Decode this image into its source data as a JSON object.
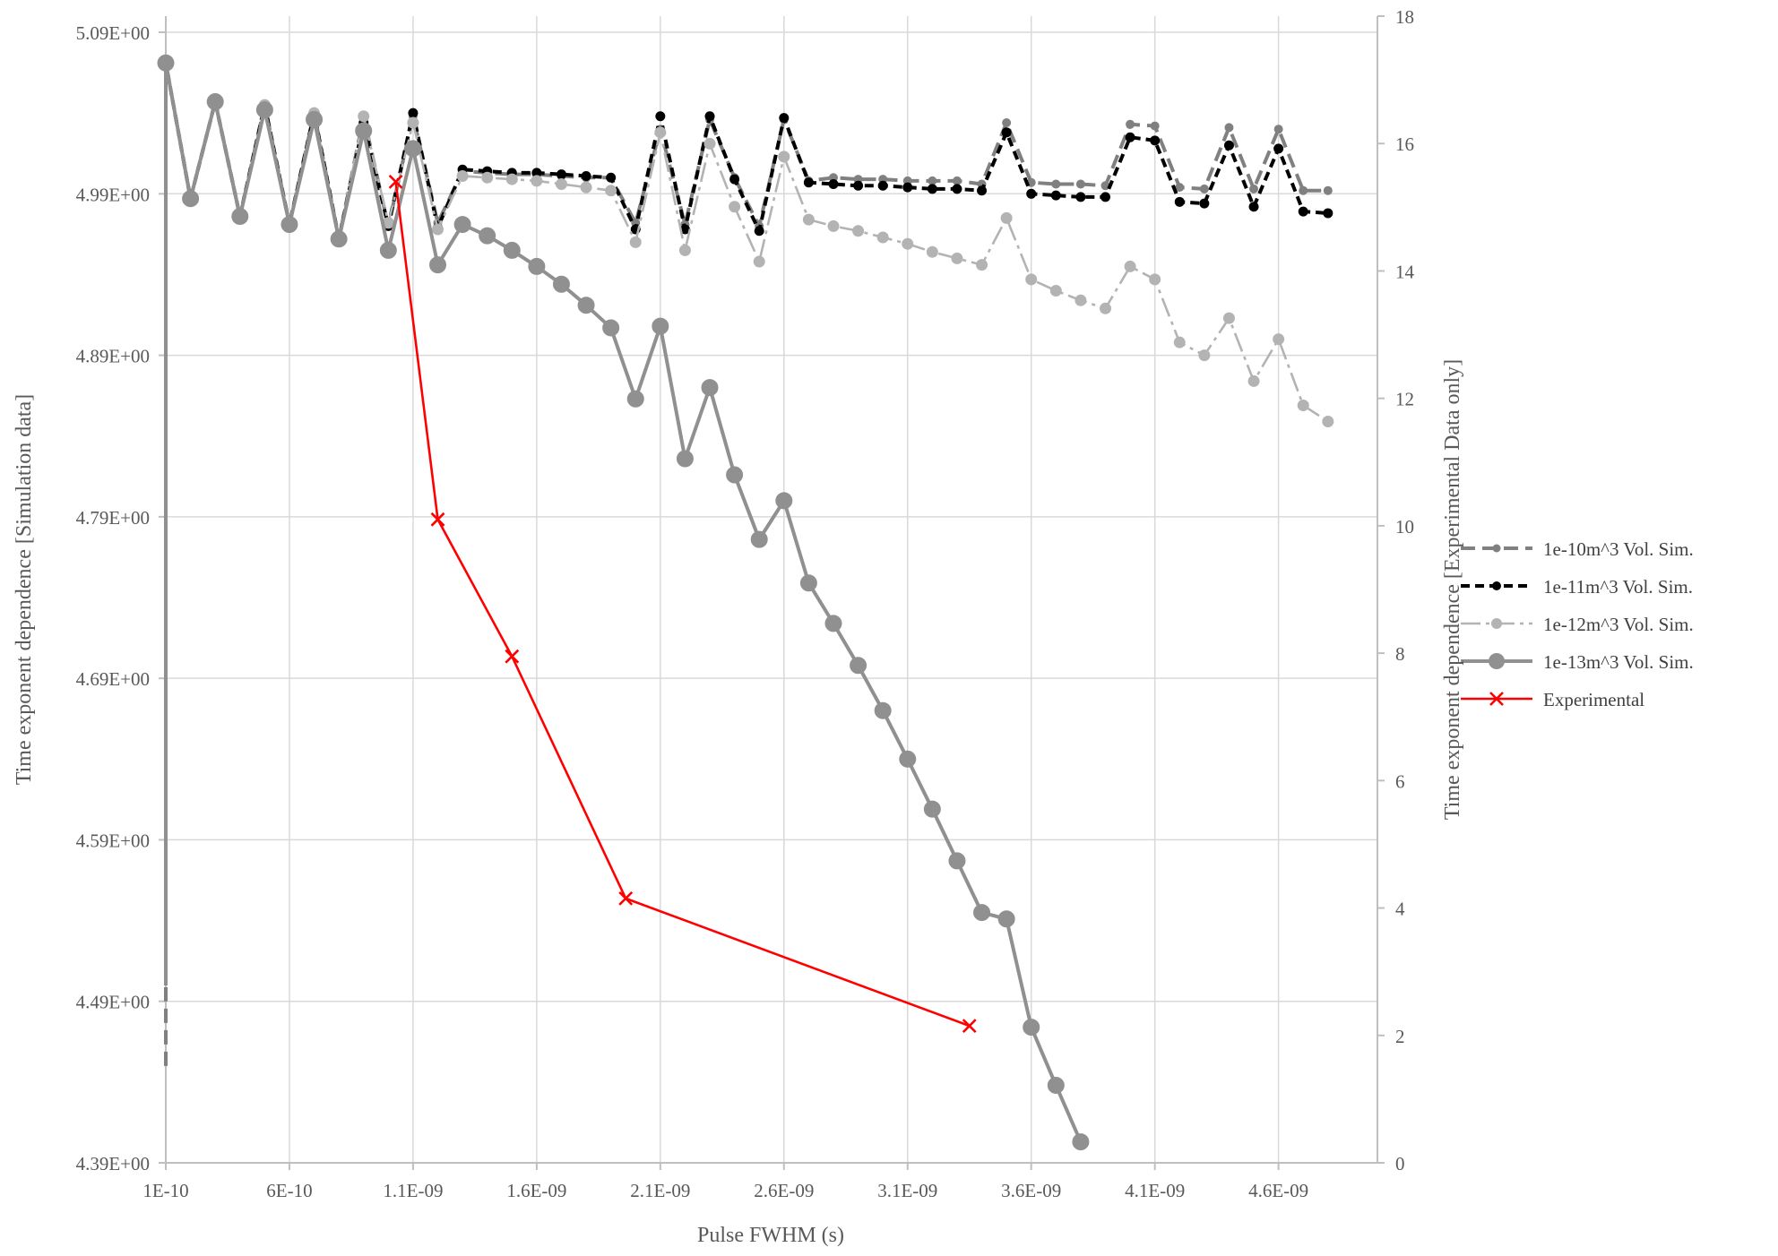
{
  "chart_data": {
    "type": "line",
    "xlabel": "Pulse FWHM (s)",
    "ylabel": "Time exponent dependence  [Simulation data]",
    "y2label": "Time exponent dependence [Experimental Data only]",
    "xlim": [
      1e-10,
      5e-09
    ],
    "ylim": [
      4.39,
      5.1
    ],
    "y2lim": [
      0,
      18
    ],
    "x_ticks": [
      1e-10,
      6e-10,
      1.1e-09,
      1.6e-09,
      2.1e-09,
      2.6e-09,
      3.1e-09,
      3.6e-09,
      4.1e-09,
      4.6e-09
    ],
    "x_tick_labels": [
      "1E-10",
      "6E-10",
      "1.1E-09",
      "1.6E-09",
      "2.1E-09",
      "2.6E-09",
      "3.1E-09",
      "3.6E-09",
      "4.1E-09",
      "4.6E-09"
    ],
    "y_ticks": [
      4.39,
      4.49,
      4.59,
      4.69,
      4.79,
      4.89,
      4.99,
      5.09
    ],
    "y_tick_labels": [
      "4.39E+00",
      "4.49E+00",
      "4.59E+00",
      "4.69E+00",
      "4.79E+00",
      "4.89E+00",
      "4.99E+00",
      "5.09E+00"
    ],
    "y2_ticks": [
      0,
      2,
      4,
      6,
      8,
      10,
      12,
      14,
      16,
      18
    ],
    "y2_tick_labels": [
      "0",
      "2",
      "4",
      "6",
      "8",
      "10",
      "12",
      "14",
      "16",
      "18"
    ],
    "grid": "vertical and horizontal",
    "legend_position": "right",
    "sim_x": [
      1e-10,
      2e-10,
      3e-10,
      4e-10,
      5e-10,
      6e-10,
      7e-10,
      8e-10,
      9e-10,
      1e-09,
      1.1e-09,
      1.2e-09,
      1.3e-09,
      1.4e-09,
      1.5e-09,
      1.6e-09,
      1.7e-09,
      1.8e-09,
      1.9e-09,
      2e-09,
      2.1e-09,
      2.2e-09,
      2.3e-09,
      2.4e-09,
      2.5e-09,
      2.6e-09,
      2.7e-09,
      2.8e-09,
      2.9e-09,
      3e-09,
      3.1e-09,
      3.2e-09,
      3.3e-09,
      3.4e-09,
      3.5e-09,
      3.6e-09,
      3.7e-09,
      3.8e-09,
      3.9e-09,
      4e-09,
      4.1e-09,
      4.2e-09,
      4.3e-09,
      4.4e-09,
      4.5e-09,
      4.6e-09,
      4.7e-09,
      4.8e-09
    ],
    "series": [
      {
        "name": "1e-10m^3 Vol. Sim.",
        "axis": "left",
        "color": "#808080",
        "dash": "16,8",
        "marker_r": 4.5,
        "width": 4,
        "first_y": 4.45,
        "values": [
          5.071,
          4.987,
          5.047,
          4.976,
          5.045,
          4.971,
          5.04,
          4.962,
          5.038,
          4.97,
          5.038,
          4.972,
          5.004,
          5.003,
          5.002,
          5.002,
          5.001,
          5.0,
          5.0,
          4.972,
          5.03,
          4.971,
          5.036,
          5.0,
          4.97,
          5.036,
          4.998,
          5.0,
          4.999,
          4.999,
          4.998,
          4.998,
          4.998,
          4.996,
          5.034,
          4.997,
          4.996,
          4.996,
          4.995,
          5.033,
          5.032,
          4.994,
          4.993,
          5.031,
          4.993,
          5.03,
          4.992,
          4.992
        ]
      },
      {
        "name": "1e-11m^3 Vol. Sim.",
        "axis": "left",
        "color": "#000000",
        "dash": "10,6",
        "marker_r": 5,
        "width": 4,
        "first_y": 4.5,
        "values": [
          5.071,
          4.987,
          5.047,
          4.976,
          5.045,
          4.971,
          5.04,
          4.962,
          5.034,
          4.97,
          5.04,
          4.969,
          5.005,
          5.004,
          5.003,
          5.003,
          5.002,
          5.001,
          5.0,
          4.968,
          5.038,
          4.968,
          5.038,
          4.999,
          4.967,
          5.037,
          4.997,
          4.996,
          4.995,
          4.995,
          4.994,
          4.993,
          4.993,
          4.992,
          5.028,
          4.99,
          4.989,
          4.988,
          4.988,
          5.025,
          5.023,
          4.985,
          4.984,
          5.02,
          4.982,
          5.018,
          4.979,
          4.978
        ]
      },
      {
        "name": "1e-12m^3 Vol. Sim.",
        "axis": "left",
        "color": "#b3b3b3",
        "dash": "22,6,4,6",
        "marker_r": 6,
        "width": 2.6,
        "first_y": 4.53,
        "values": [
          5.071,
          4.987,
          5.047,
          4.976,
          5.045,
          4.971,
          5.04,
          4.962,
          5.038,
          4.972,
          5.034,
          4.968,
          5.001,
          5.0,
          4.999,
          4.998,
          4.996,
          4.994,
          4.992,
          4.96,
          5.028,
          4.955,
          5.021,
          4.982,
          4.948,
          5.013,
          4.974,
          4.97,
          4.967,
          4.963,
          4.959,
          4.954,
          4.95,
          4.946,
          4.975,
          4.937,
          4.93,
          4.924,
          4.919,
          4.945,
          4.937,
          4.898,
          4.89,
          4.913,
          4.874,
          4.9,
          4.859,
          4.849
        ]
      },
      {
        "name": "1e-13m^3 Vol. Sim.",
        "axis": "left",
        "color": "#909090",
        "dash": "",
        "marker_r": 9,
        "width": 4,
        "first_y": 4.5,
        "values": [
          5.071,
          4.987,
          5.047,
          4.976,
          5.042,
          4.971,
          5.036,
          4.962,
          5.029,
          4.955,
          5.018,
          4.946,
          4.971,
          4.964,
          4.955,
          4.945,
          4.934,
          4.921,
          4.907,
          4.863,
          4.908,
          4.826,
          4.87,
          4.816,
          4.776,
          4.8,
          4.749,
          4.724,
          4.698,
          4.67,
          4.64,
          4.609,
          4.577,
          4.545,
          4.541,
          4.474,
          4.438,
          4.403
        ]
      },
      {
        "name": "Experimental",
        "axis": "right",
        "color": "#ff0000",
        "marker": "x",
        "width": 2.6,
        "x": [
          1.03e-09,
          1.2e-09,
          1.5e-09,
          1.96e-09,
          3.35e-09
        ],
        "values": [
          15.4,
          10.1,
          7.95,
          4.15,
          2.15
        ]
      }
    ]
  }
}
